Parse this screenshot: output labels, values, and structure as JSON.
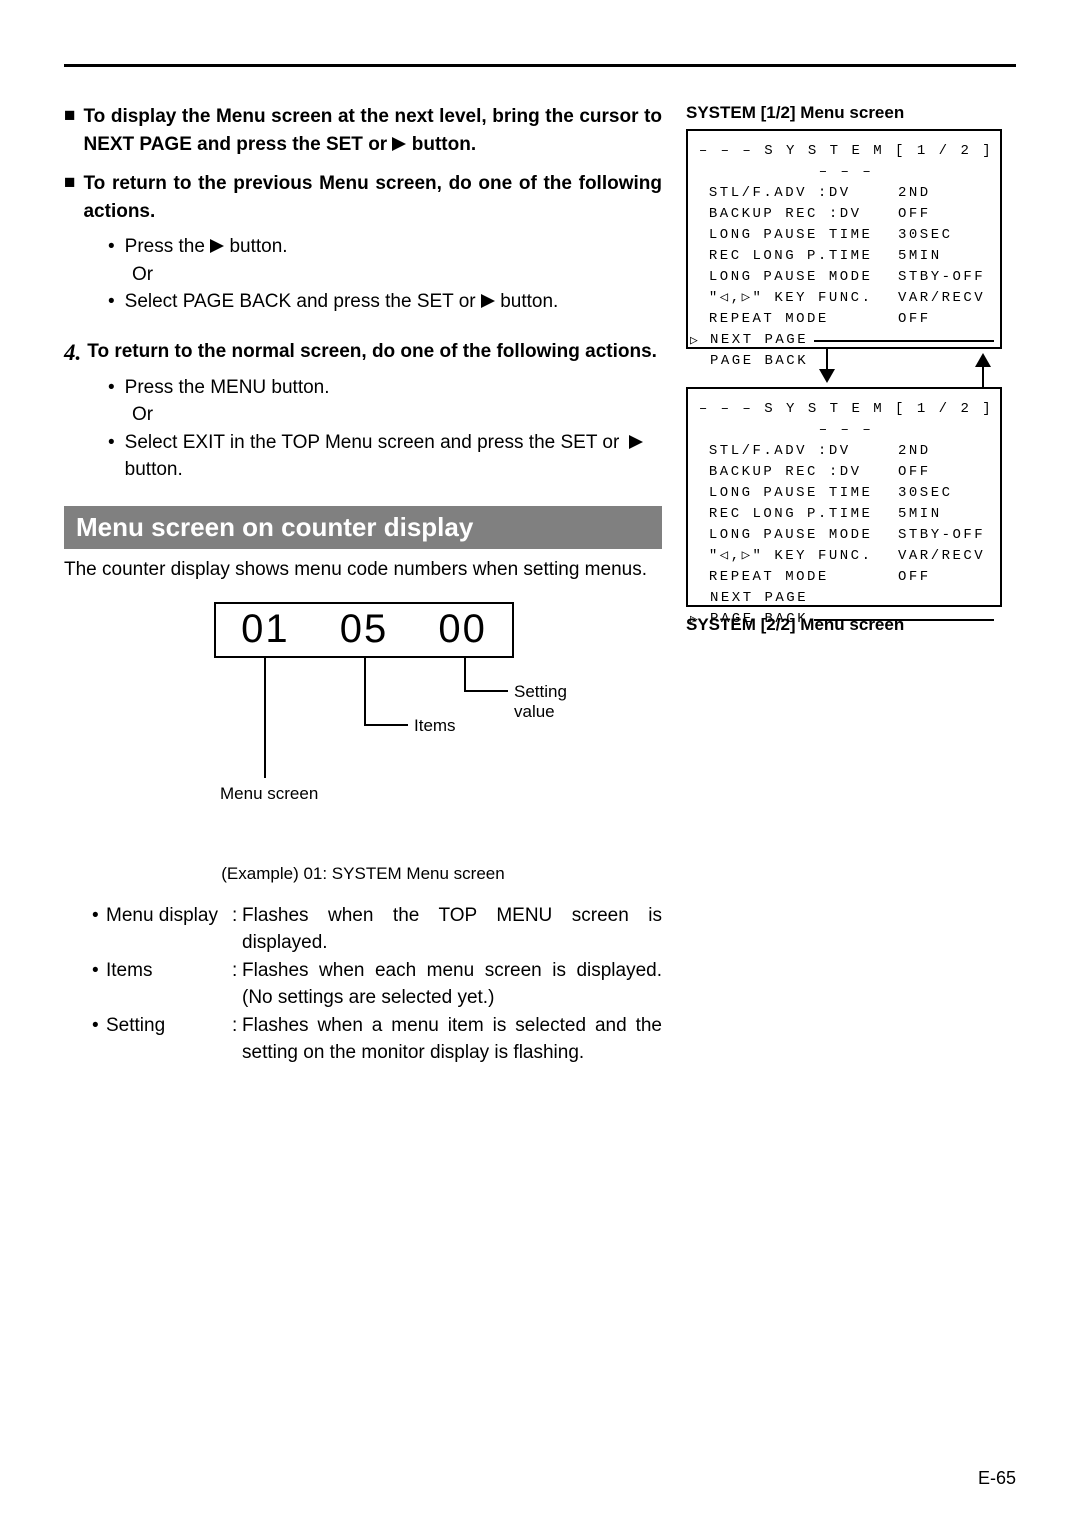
{
  "bullets": {
    "b1": "To display the Menu screen at the next level, bring the cursor to NEXT PAGE and press the SET or",
    "b1_suffix": "button.",
    "b2": "To return to the previous Menu screen, do one of the following actions.",
    "b2_sub1a": "Press the ",
    "b2_sub1b": " button.",
    "or": "Or",
    "b2_sub2a": "Select PAGE BACK and press the SET or ",
    "b2_sub2b": " button."
  },
  "step4": {
    "num": "4.",
    "text": "To return to the normal screen, do one of the following actions.",
    "sub1": "Press the MENU button.",
    "sub2a": "Select EXIT in the TOP Menu screen and press the SET or",
    "sub2b": " button."
  },
  "section": {
    "title": "Menu screen on counter display",
    "desc": "The counter display shows menu code numbers when setting menus."
  },
  "counter": {
    "d1": "01",
    "d2": "05",
    "d3": "00",
    "label_value": "Setting value",
    "label_items": "Items",
    "label_menu": "Menu screen",
    "example": "(Example) 01: SYSTEM Menu screen"
  },
  "defs": {
    "r1_term": "Menu display",
    "r1_desc": "Flashes when the TOP MENU screen is displayed.",
    "r2_term": "Items",
    "r2_desc": "Flashes when each menu screen is displayed. (No settings are selected yet.)",
    "r3_term": "Setting",
    "r3_desc": "Flashes when a menu item is selected and the setting on the monitor display is flashing."
  },
  "menus": {
    "caption1": "SYSTEM [1/2] Menu screen",
    "caption2": "SYSTEM [2/2] Menu screen",
    "title": "– – – S Y S T E M [ 1 / 2 ] – – –",
    "rows": [
      {
        "label": "STL/F.ADV :DV",
        "val": "2ND"
      },
      {
        "label": "BACKUP REC :DV",
        "val": "OFF"
      },
      {
        "label": "LONG PAUSE TIME",
        "val": "30SEC"
      },
      {
        "label": "REC LONG P.TIME",
        "val": "5MIN"
      },
      {
        "label": "LONG PAUSE MODE",
        "val": "STBY-OFF"
      },
      {
        "label": "\"◁,▷\" KEY FUNC.",
        "val": "VAR/RECV"
      },
      {
        "label": "REPEAT MODE",
        "val": "OFF"
      }
    ],
    "next_page": "NEXT PAGE",
    "page_back": "PAGE BACK"
  },
  "page_number": "E-65",
  "colors": {
    "bar_bg": "#808080",
    "text": "#000000",
    "bg": "#ffffff"
  }
}
